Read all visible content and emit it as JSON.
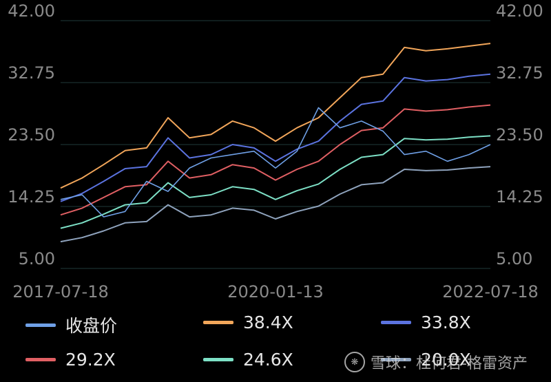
{
  "chart_data": {
    "type": "line",
    "title": "",
    "xlabel": "",
    "ylabel": "",
    "ylim": [
      5.0,
      42.0
    ],
    "y_ticks": [
      "42.00",
      "32.75",
      "23.50",
      "14.25",
      "5.00"
    ],
    "x_ticks": [
      "2017-07-18",
      "2020-01-13",
      "2022-07-18"
    ],
    "grid": "horizontal",
    "legend_position": "bottom",
    "x_dates": [
      "2017-07",
      "2017-10",
      "2018-01",
      "2018-04",
      "2018-07",
      "2018-10",
      "2019-01",
      "2019-04",
      "2019-07",
      "2019-10",
      "2020-01",
      "2020-04",
      "2020-07",
      "2020-10",
      "2021-01",
      "2021-04",
      "2021-07",
      "2021-10",
      "2022-01",
      "2022-04",
      "2022-07"
    ],
    "series": [
      {
        "name": "收盘价",
        "color": "#6fa0e6",
        "values": [
          15.3,
          16.0,
          12.7,
          13.5,
          18.0,
          16.5,
          20.0,
          21.5,
          22.0,
          22.5,
          20.0,
          22.5,
          29.0,
          26.0,
          27.0,
          25.5,
          22.0,
          22.5,
          21.0,
          22.0,
          23.5
        ]
      },
      {
        "name": "38.4X",
        "color": "#f2a65a",
        "values": [
          17.0,
          18.5,
          20.5,
          22.6,
          23.0,
          27.5,
          24.5,
          25.0,
          27.0,
          26.0,
          24.0,
          26.0,
          27.5,
          30.5,
          33.5,
          34.0,
          38.0,
          37.5,
          37.8,
          38.2,
          38.6
        ]
      },
      {
        "name": "33.8X",
        "color": "#5b73e0",
        "values": [
          15.0,
          16.2,
          18.0,
          19.9,
          20.2,
          24.5,
          21.5,
          22.0,
          23.5,
          23.0,
          21.0,
          22.8,
          24.0,
          27.0,
          29.5,
          30.0,
          33.5,
          33.0,
          33.2,
          33.7,
          34.0
        ]
      },
      {
        "name": "29.2X",
        "color": "#e05f63",
        "values": [
          13.0,
          14.0,
          15.6,
          17.2,
          17.5,
          21.0,
          18.5,
          19.0,
          20.5,
          20.0,
          18.2,
          19.8,
          21.0,
          23.5,
          25.6,
          26.0,
          28.8,
          28.5,
          28.7,
          29.1,
          29.4
        ]
      },
      {
        "name": "24.6X",
        "color": "#7de0c6",
        "values": [
          11.0,
          11.8,
          13.1,
          14.5,
          14.8,
          17.8,
          15.6,
          16.0,
          17.2,
          16.8,
          15.3,
          16.6,
          17.6,
          19.8,
          21.6,
          22.0,
          24.4,
          24.2,
          24.3,
          24.6,
          24.8
        ]
      },
      {
        "name": "20.0X",
        "color": "#8fa3bd",
        "values": [
          9.0,
          9.6,
          10.6,
          11.8,
          12.0,
          14.5,
          12.7,
          13.0,
          14.0,
          13.7,
          12.4,
          13.5,
          14.3,
          16.1,
          17.5,
          17.8,
          19.8,
          19.6,
          19.7,
          20.0,
          20.2
        ]
      }
    ]
  },
  "watermark": "雪球：杜何君-格雷资产"
}
